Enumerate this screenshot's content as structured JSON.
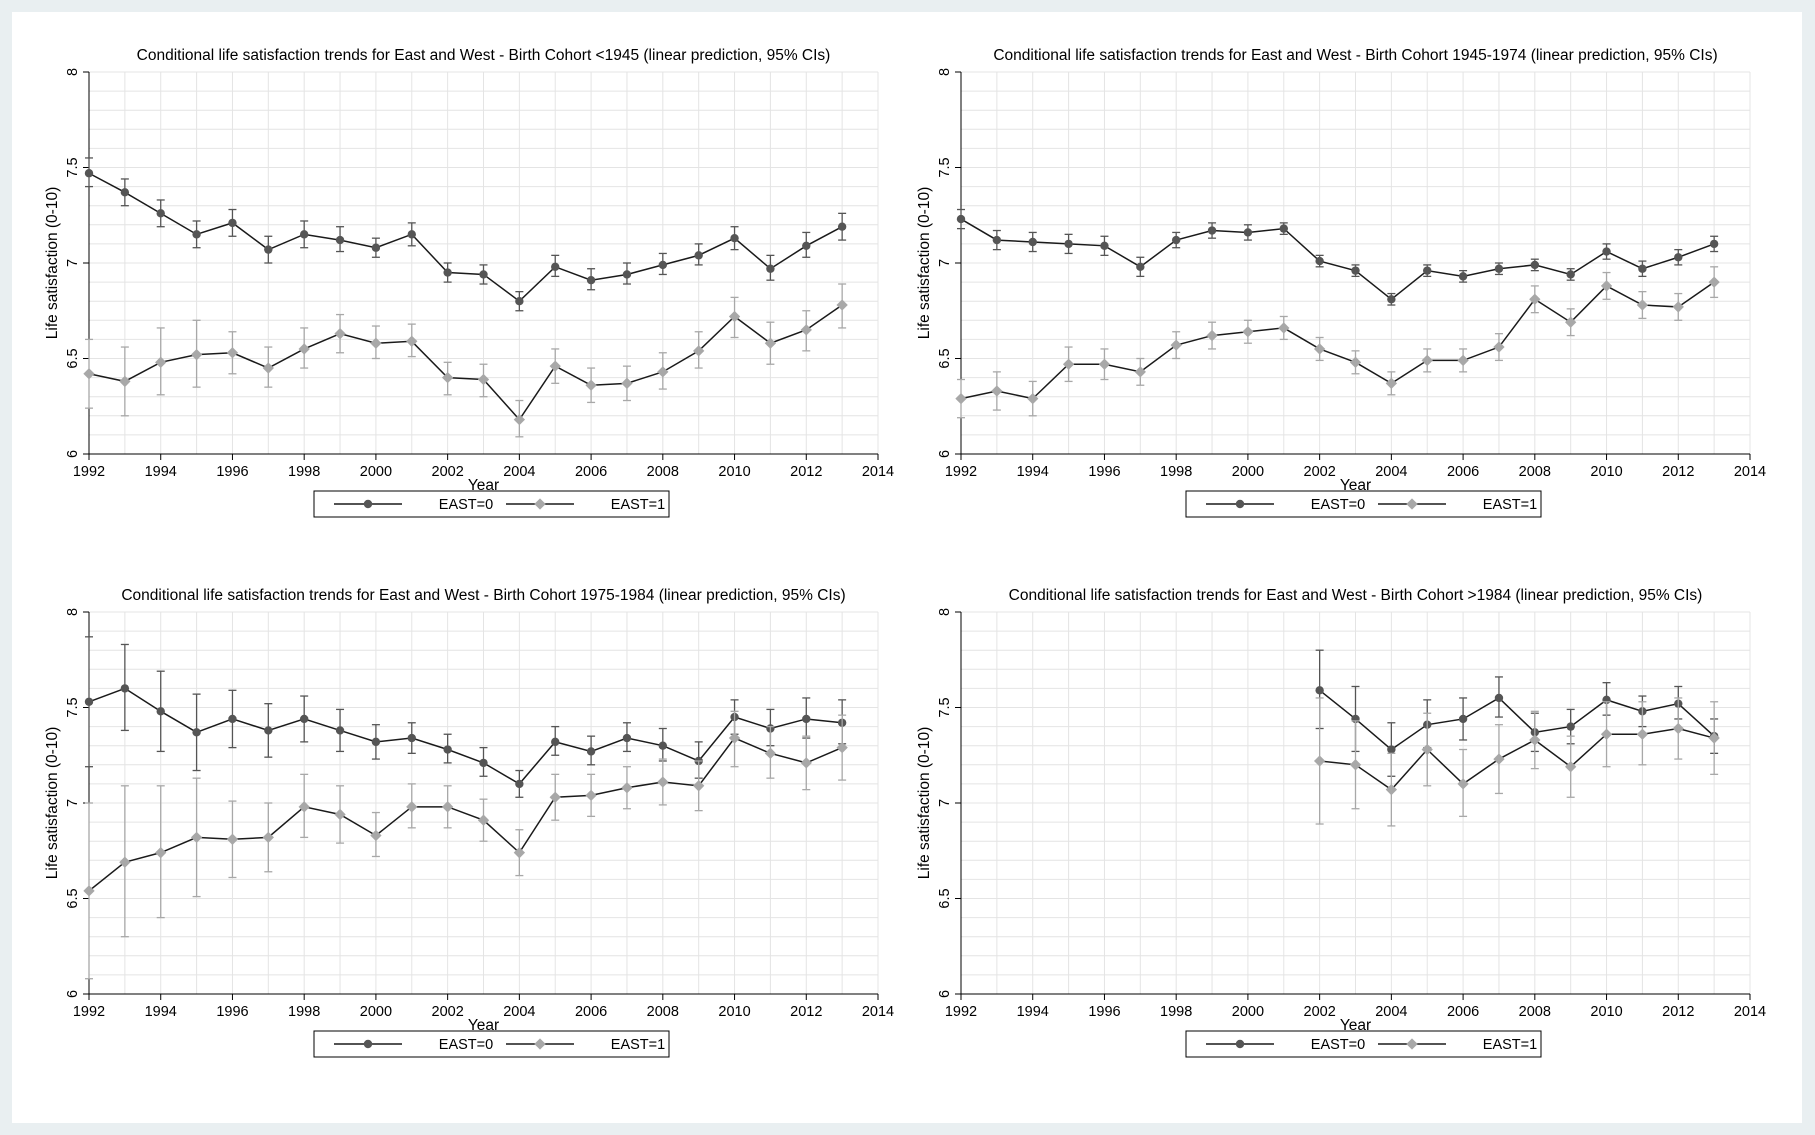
{
  "figure": {
    "colors": {
      "east0": "#555555",
      "east1": "#a8a8a8",
      "grid": "#e4e4e4",
      "axis": "#000000"
    }
  },
  "chart_data": [
    {
      "type": "line",
      "title": "Conditional life satisfaction trends for East and West - Birth Cohort <1945 (linear prediction, 95% CIs)",
      "xlabel": "Year",
      "ylabel": "Life satisfaction (0-10)",
      "xlim": [
        1992,
        2014
      ],
      "ylim": [
        6,
        8
      ],
      "xticks": [
        "1992",
        "1994",
        "1996",
        "1998",
        "2000",
        "2002",
        "2004",
        "2006",
        "2008",
        "2010",
        "2012",
        "2014"
      ],
      "yticks": [
        "6",
        "6.5",
        "7",
        "7.5",
        "8"
      ],
      "grid": true,
      "legend": "bottom",
      "series": [
        {
          "name": "EAST=0",
          "x": [
            1992,
            1993,
            1994,
            1995,
            1996,
            1997,
            1998,
            1999,
            2000,
            2001,
            2002,
            2003,
            2004,
            2005,
            2006,
            2007,
            2008,
            2009,
            2010,
            2011,
            2012,
            2013
          ],
          "y": [
            7.47,
            7.37,
            7.26,
            7.15,
            7.21,
            7.07,
            7.15,
            7.12,
            7.08,
            7.15,
            6.95,
            6.94,
            6.8,
            6.98,
            6.91,
            6.94,
            6.99,
            7.04,
            7.13,
            6.97,
            7.09,
            7.19
          ],
          "lo": [
            7.4,
            7.3,
            7.19,
            7.08,
            7.14,
            7.0,
            7.08,
            7.06,
            7.03,
            7.09,
            6.9,
            6.89,
            6.75,
            6.93,
            6.86,
            6.89,
            6.94,
            6.99,
            7.07,
            6.91,
            7.03,
            7.12
          ],
          "hi": [
            7.55,
            7.44,
            7.33,
            7.22,
            7.28,
            7.14,
            7.22,
            7.19,
            7.13,
            7.21,
            7.0,
            6.99,
            6.85,
            7.04,
            6.97,
            7.0,
            7.05,
            7.1,
            7.19,
            7.04,
            7.16,
            7.26
          ]
        },
        {
          "name": "EAST=1",
          "x": [
            1992,
            1993,
            1994,
            1995,
            1996,
            1997,
            1998,
            1999,
            2000,
            2001,
            2002,
            2003,
            2004,
            2005,
            2006,
            2007,
            2008,
            2009,
            2010,
            2011,
            2012,
            2013
          ],
          "y": [
            6.42,
            6.38,
            6.48,
            6.52,
            6.53,
            6.45,
            6.55,
            6.63,
            6.58,
            6.59,
            6.4,
            6.39,
            6.18,
            6.46,
            6.36,
            6.37,
            6.43,
            6.54,
            6.72,
            6.58,
            6.65,
            6.78
          ],
          "lo": [
            6.24,
            6.2,
            6.31,
            6.35,
            6.42,
            6.35,
            6.45,
            6.53,
            6.5,
            6.51,
            6.31,
            6.3,
            6.09,
            6.37,
            6.27,
            6.28,
            6.34,
            6.45,
            6.61,
            6.47,
            6.54,
            6.66
          ],
          "hi": [
            6.6,
            6.56,
            6.66,
            6.7,
            6.64,
            6.56,
            6.66,
            6.73,
            6.67,
            6.68,
            6.48,
            6.47,
            6.28,
            6.55,
            6.45,
            6.46,
            6.53,
            6.64,
            6.82,
            6.69,
            6.75,
            6.89
          ]
        }
      ]
    },
    {
      "type": "line",
      "title": "Conditional life satisfaction trends for East and West - Birth Cohort 1945-1974 (linear prediction, 95% CIs)",
      "xlabel": "Year",
      "ylabel": "Life satisfaction (0-10)",
      "xlim": [
        1992,
        2014
      ],
      "ylim": [
        6,
        8
      ],
      "xticks": [
        "1992",
        "1994",
        "1996",
        "1998",
        "2000",
        "2002",
        "2004",
        "2006",
        "2008",
        "2010",
        "2012",
        "2014"
      ],
      "yticks": [
        "6",
        "6.5",
        "7",
        "7.5",
        "8"
      ],
      "grid": true,
      "legend": "bottom",
      "series": [
        {
          "name": "EAST=0",
          "x": [
            1992,
            1993,
            1994,
            1995,
            1996,
            1997,
            1998,
            1999,
            2000,
            2001,
            2002,
            2003,
            2004,
            2005,
            2006,
            2007,
            2008,
            2009,
            2010,
            2011,
            2012,
            2013
          ],
          "y": [
            7.23,
            7.12,
            7.11,
            7.1,
            7.09,
            6.98,
            7.12,
            7.17,
            7.16,
            7.18,
            7.01,
            6.96,
            6.81,
            6.96,
            6.93,
            6.97,
            6.99,
            6.94,
            7.06,
            6.97,
            7.03,
            7.1
          ],
          "lo": [
            7.18,
            7.07,
            7.06,
            7.05,
            7.04,
            6.93,
            7.08,
            7.13,
            7.12,
            7.15,
            6.98,
            6.93,
            6.78,
            6.93,
            6.9,
            6.94,
            6.96,
            6.91,
            7.02,
            6.93,
            6.99,
            7.06
          ],
          "hi": [
            7.28,
            7.17,
            7.16,
            7.15,
            7.14,
            7.03,
            7.16,
            7.21,
            7.2,
            7.21,
            7.04,
            6.99,
            6.84,
            6.99,
            6.96,
            7.0,
            7.02,
            6.97,
            7.1,
            7.01,
            7.07,
            7.14
          ]
        },
        {
          "name": "EAST=1",
          "x": [
            1992,
            1993,
            1994,
            1995,
            1996,
            1997,
            1998,
            1999,
            2000,
            2001,
            2002,
            2003,
            2004,
            2005,
            2006,
            2007,
            2008,
            2009,
            2010,
            2011,
            2012,
            2013
          ],
          "y": [
            6.29,
            6.33,
            6.29,
            6.47,
            6.47,
            6.43,
            6.57,
            6.62,
            6.64,
            6.66,
            6.55,
            6.48,
            6.37,
            6.49,
            6.49,
            6.56,
            6.81,
            6.69,
            6.88,
            6.78,
            6.77,
            6.9
          ],
          "lo": [
            6.19,
            6.23,
            6.2,
            6.38,
            6.39,
            6.36,
            6.5,
            6.55,
            6.58,
            6.6,
            6.49,
            6.42,
            6.31,
            6.43,
            6.43,
            6.49,
            6.74,
            6.62,
            6.81,
            6.71,
            6.7,
            6.82
          ],
          "hi": [
            6.39,
            6.43,
            6.38,
            6.56,
            6.55,
            6.5,
            6.64,
            6.69,
            6.7,
            6.72,
            6.61,
            6.54,
            6.43,
            6.55,
            6.55,
            6.63,
            6.88,
            6.76,
            6.95,
            6.85,
            6.84,
            6.98
          ]
        }
      ]
    },
    {
      "type": "line",
      "title": "Conditional life satisfaction trends for East and West - Birth Cohort 1975-1984 (linear prediction, 95% CIs)",
      "xlabel": "Year",
      "ylabel": "Life satisfaction (0-10)",
      "xlim": [
        1992,
        2014
      ],
      "ylim": [
        6,
        8
      ],
      "xticks": [
        "1992",
        "1994",
        "1996",
        "1998",
        "2000",
        "2002",
        "2004",
        "2006",
        "2008",
        "2010",
        "2012",
        "2014"
      ],
      "yticks": [
        "6",
        "6.5",
        "7",
        "7.5",
        "8"
      ],
      "grid": true,
      "legend": "bottom",
      "series": [
        {
          "name": "EAST=0",
          "x": [
            1992,
            1993,
            1994,
            1995,
            1996,
            1997,
            1998,
            1999,
            2000,
            2001,
            2002,
            2003,
            2004,
            2005,
            2006,
            2007,
            2008,
            2009,
            2010,
            2011,
            2012,
            2013
          ],
          "y": [
            7.53,
            7.6,
            7.48,
            7.37,
            7.44,
            7.38,
            7.44,
            7.38,
            7.32,
            7.34,
            7.28,
            7.21,
            7.1,
            7.32,
            7.27,
            7.34,
            7.3,
            7.22,
            7.45,
            7.39,
            7.44,
            7.42
          ],
          "lo": [
            7.19,
            7.38,
            7.27,
            7.17,
            7.29,
            7.24,
            7.32,
            7.27,
            7.23,
            7.26,
            7.21,
            7.14,
            7.03,
            7.25,
            7.2,
            7.27,
            7.22,
            7.13,
            7.36,
            7.3,
            7.34,
            7.31
          ],
          "hi": [
            7.87,
            7.83,
            7.69,
            7.57,
            7.59,
            7.52,
            7.56,
            7.49,
            7.41,
            7.42,
            7.36,
            7.29,
            7.17,
            7.4,
            7.35,
            7.42,
            7.39,
            7.32,
            7.54,
            7.49,
            7.55,
            7.54
          ]
        },
        {
          "name": "EAST=1",
          "x": [
            1992,
            1993,
            1994,
            1995,
            1996,
            1997,
            1998,
            1999,
            2000,
            2001,
            2002,
            2003,
            2004,
            2005,
            2006,
            2007,
            2008,
            2009,
            2010,
            2011,
            2012,
            2013
          ],
          "y": [
            6.54,
            6.69,
            6.74,
            6.82,
            6.81,
            6.82,
            6.98,
            6.94,
            6.83,
            6.98,
            6.98,
            6.91,
            6.74,
            7.03,
            7.04,
            7.08,
            7.11,
            7.09,
            7.34,
            7.26,
            7.21,
            7.29
          ],
          "lo": [
            6.08,
            6.3,
            6.4,
            6.51,
            6.61,
            6.64,
            6.82,
            6.79,
            6.72,
            6.87,
            6.87,
            6.8,
            6.62,
            6.91,
            6.93,
            6.97,
            6.99,
            6.96,
            7.19,
            7.13,
            7.07,
            7.12
          ],
          "hi": [
            7.0,
            7.09,
            7.09,
            7.13,
            7.01,
            7.0,
            7.15,
            7.09,
            6.95,
            7.1,
            7.09,
            7.02,
            6.86,
            7.15,
            7.15,
            7.19,
            7.23,
            7.22,
            7.48,
            7.4,
            7.35,
            7.46
          ]
        }
      ]
    },
    {
      "type": "line",
      "title": "Conditional life satisfaction trends for East and West - Birth Cohort >1984 (linear prediction, 95% CIs)",
      "xlabel": "Year",
      "ylabel": "Life satisfaction (0-10)",
      "xlim": [
        1992,
        2014
      ],
      "ylim": [
        6,
        8
      ],
      "xticks": [
        "1992",
        "1994",
        "1996",
        "1998",
        "2000",
        "2002",
        "2004",
        "2006",
        "2008",
        "2010",
        "2012",
        "2014"
      ],
      "yticks": [
        "6",
        "6.5",
        "7",
        "7.5",
        "8"
      ],
      "grid": true,
      "legend": "bottom",
      "series": [
        {
          "name": "EAST=0",
          "x": [
            2002,
            2003,
            2004,
            2005,
            2006,
            2007,
            2008,
            2009,
            2010,
            2011,
            2012,
            2013
          ],
          "y": [
            7.59,
            7.44,
            7.28,
            7.41,
            7.44,
            7.55,
            7.37,
            7.4,
            7.54,
            7.48,
            7.52,
            7.35
          ],
          "lo": [
            7.39,
            7.27,
            7.14,
            7.29,
            7.33,
            7.45,
            7.27,
            7.31,
            7.46,
            7.4,
            7.44,
            7.26
          ],
          "hi": [
            7.8,
            7.61,
            7.42,
            7.54,
            7.55,
            7.66,
            7.47,
            7.49,
            7.63,
            7.56,
            7.61,
            7.44
          ]
        },
        {
          "name": "EAST=1",
          "x": [
            2002,
            2003,
            2004,
            2005,
            2006,
            2007,
            2008,
            2009,
            2010,
            2011,
            2012,
            2013
          ],
          "y": [
            7.22,
            7.2,
            7.07,
            7.28,
            7.1,
            7.23,
            7.33,
            7.19,
            7.36,
            7.36,
            7.39,
            7.34
          ],
          "lo": [
            6.89,
            6.97,
            6.88,
            7.09,
            6.93,
            7.05,
            7.18,
            7.03,
            7.19,
            7.2,
            7.23,
            7.15
          ],
          "hi": [
            7.55,
            7.43,
            7.26,
            7.47,
            7.28,
            7.41,
            7.48,
            7.35,
            7.53,
            7.53,
            7.55,
            7.53
          ]
        }
      ]
    }
  ]
}
